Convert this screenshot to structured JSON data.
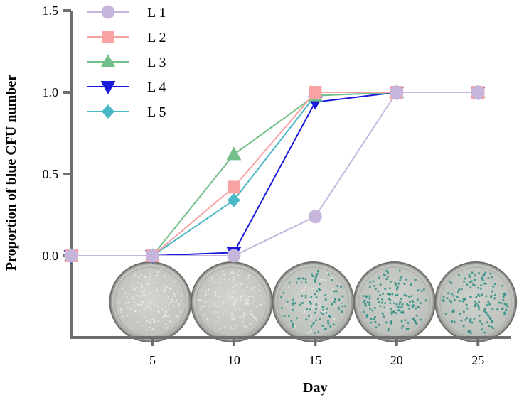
{
  "chart_data": {
    "type": "line",
    "xlabel": "Day",
    "ylabel": "Proportion of blue CFU number",
    "xlim": [
      0,
      27
    ],
    "ylim": [
      -0.5,
      1.5
    ],
    "x_ticks": [
      5,
      10,
      15,
      20,
      25
    ],
    "x_tick_labels": [
      "5",
      "10",
      "15",
      "20",
      "25"
    ],
    "y_ticks": [
      0.0,
      0.5,
      1.0,
      1.5
    ],
    "y_tick_labels": [
      "0.0",
      "0.5",
      "1.0",
      "1.5"
    ],
    "legend_position": "top-left",
    "grid": false,
    "series": [
      {
        "name": "L 1",
        "color": "#c7b6dc",
        "marker": "circle",
        "x": [
          0,
          5,
          10,
          15,
          20,
          25
        ],
        "y": [
          0.0,
          0.0,
          0.0,
          0.24,
          1.0,
          1.0
        ]
      },
      {
        "name": "L 2",
        "color": "#f7a3a3",
        "marker": "square",
        "x": [
          0,
          5,
          10,
          15,
          20,
          25
        ],
        "y": [
          0.0,
          0.0,
          0.42,
          1.0,
          1.0,
          1.0
        ]
      },
      {
        "name": "L 3",
        "color": "#72bf8a",
        "marker": "triangle-up",
        "x": [
          0,
          5,
          10,
          15,
          20,
          25
        ],
        "y": [
          0.0,
          0.0,
          0.62,
          0.98,
          1.0,
          1.0
        ]
      },
      {
        "name": "L 4",
        "color": "#1a1adb",
        "marker": "triangle-down",
        "x": [
          0,
          5,
          10,
          15,
          20,
          25
        ],
        "y": [
          0.0,
          0.0,
          0.02,
          0.94,
          1.0,
          1.0
        ]
      },
      {
        "name": "L 5",
        "color": "#4ab8c6",
        "marker": "diamond",
        "x": [
          0,
          5,
          10,
          15,
          20,
          25
        ],
        "y": [
          0.0,
          0.0,
          0.34,
          0.98,
          1.0,
          1.0
        ]
      }
    ],
    "plate_images": {
      "description_days": [
        5,
        10,
        15,
        20,
        25
      ],
      "blue_colony_fraction": [
        0.0,
        0.0,
        0.7,
        1.0,
        1.0
      ]
    }
  }
}
